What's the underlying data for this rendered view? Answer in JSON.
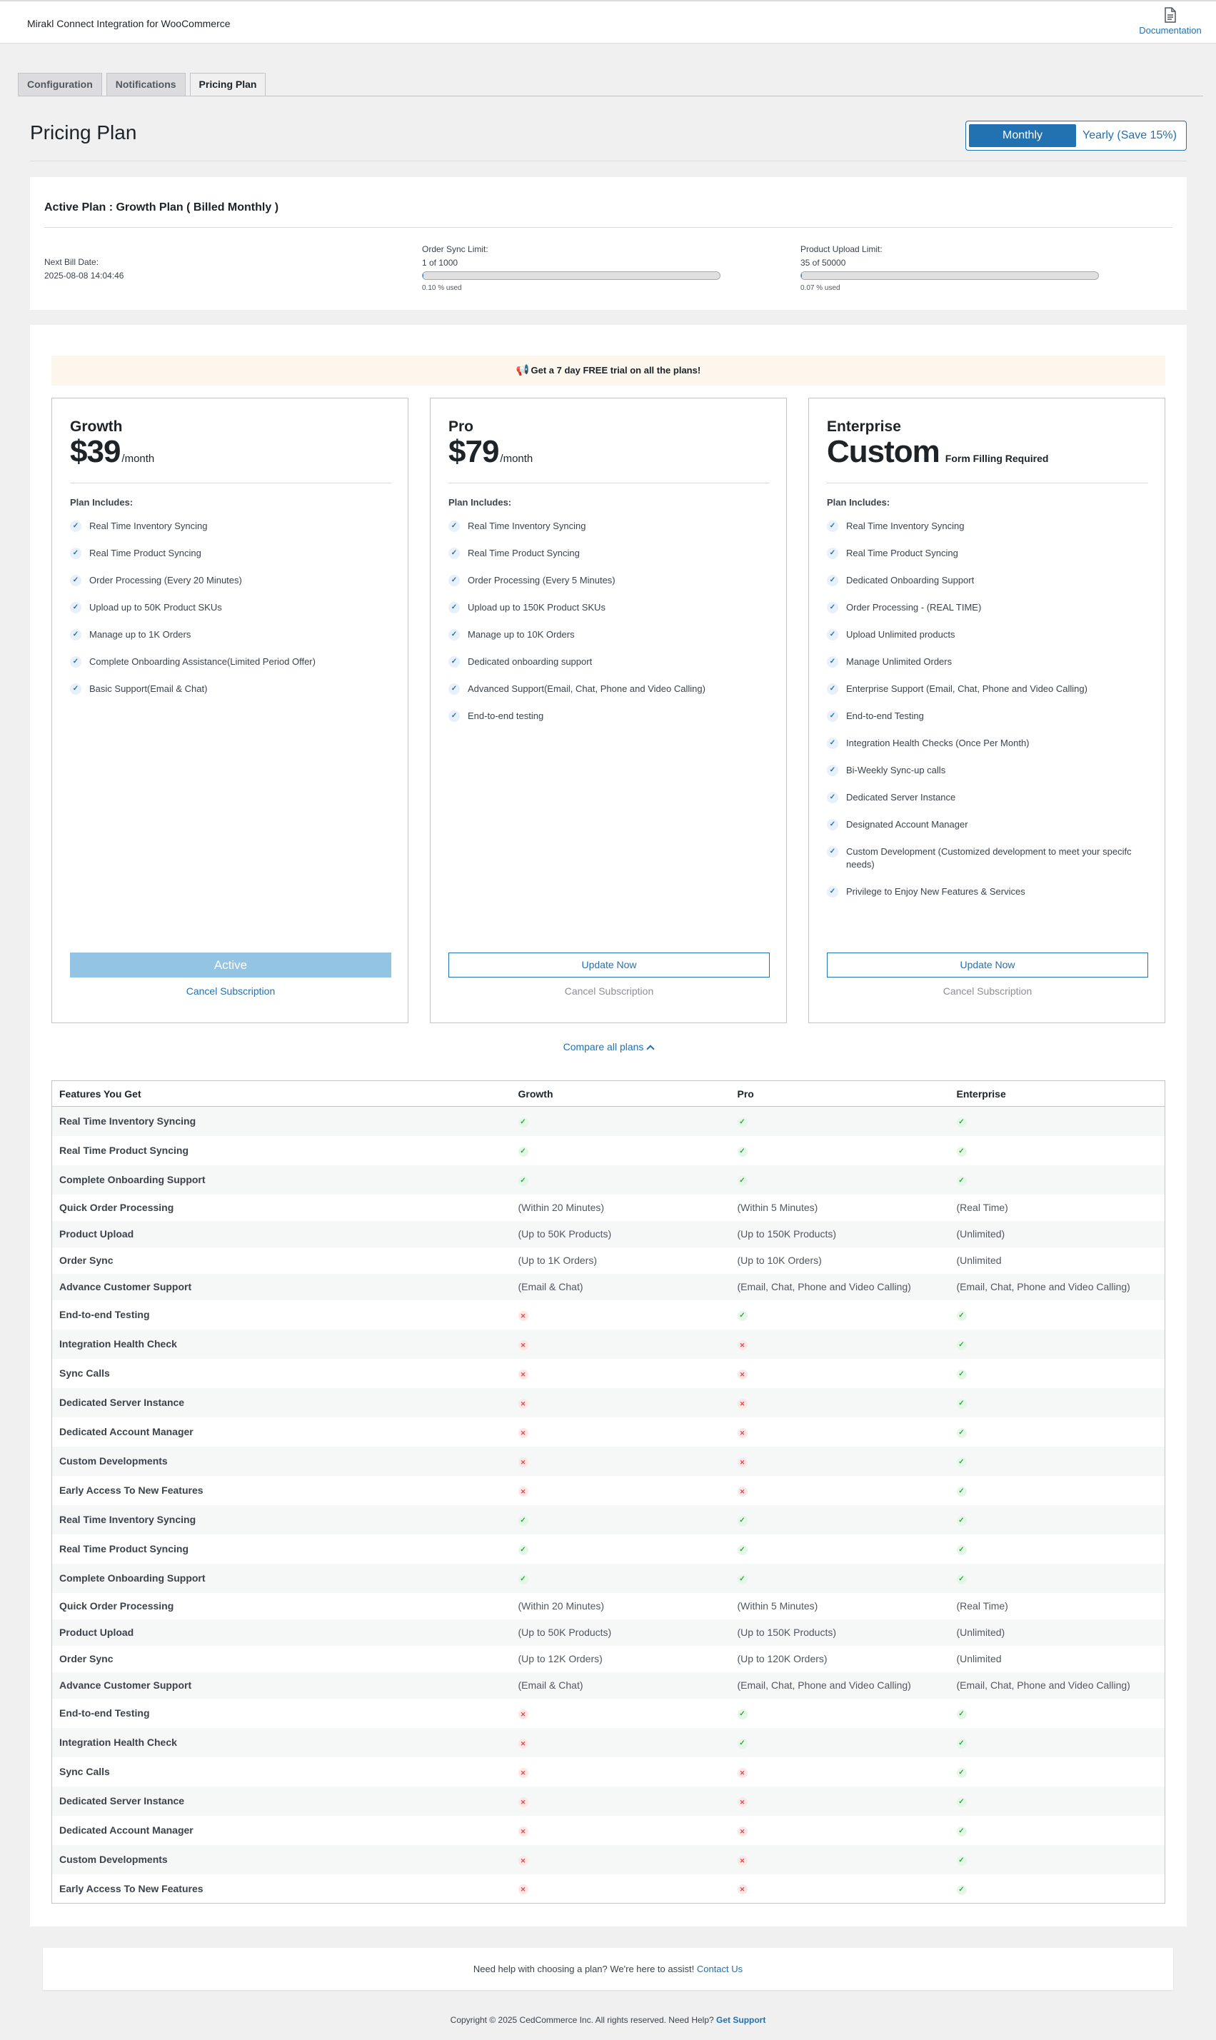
{
  "header": {
    "app_title": "Mirakl Connect Integration for WooCommerce",
    "doc_label": "Documentation"
  },
  "tabs": [
    {
      "label": "Configuration"
    },
    {
      "label": "Notifications"
    },
    {
      "label": "Pricing Plan"
    }
  ],
  "page": {
    "title": "Pricing Plan"
  },
  "billing_toggle": {
    "monthly": "Monthly",
    "yearly": "Yearly (Save 15%)",
    "selected": "Monthly"
  },
  "active_plan": {
    "title": "Active Plan : Growth Plan ( Billed Monthly )",
    "next_bill_label": "Next Bill Date:",
    "next_bill_value": "2025-08-08 14:04:46",
    "order_sync": {
      "label": "Order Sync Limit:",
      "value": "1 of 1000",
      "used_text": "0.10 % used",
      "used_percent": 0.1
    },
    "product_upload": {
      "label": "Product Upload Limit:",
      "value": "35 of 50000",
      "used_text": "0.07 % used",
      "used_percent": 0.07
    }
  },
  "trial_banner": "Get a 7 day FREE trial on all the plans!",
  "plans": [
    {
      "name": "Growth",
      "price": "$39",
      "period": "/month",
      "note": "",
      "includes_label": "Plan Includes:",
      "features": [
        "Real Time Inventory Syncing",
        "Real Time Product Syncing",
        "Order Processing (Every 20 Minutes)",
        "Upload up to 50K Product SKUs",
        "Manage up to 1K Orders",
        "Complete Onboarding Assistance(Limited Period Offer)",
        "Basic Support(Email & Chat)"
      ],
      "button_label": "Active",
      "cancel_label": "Cancel Subscription"
    },
    {
      "name": "Pro",
      "price": "$79",
      "period": "/month",
      "note": "",
      "includes_label": "Plan Includes:",
      "features": [
        "Real Time Inventory Syncing",
        "Real Time Product Syncing",
        "Order Processing (Every 5 Minutes)",
        "Upload up to 150K Product SKUs",
        "Manage up to 10K Orders",
        "Dedicated onboarding support",
        "Advanced Support(Email, Chat, Phone and Video Calling)",
        "End-to-end testing"
      ],
      "button_label": "Update Now",
      "cancel_label": "Cancel Subscription"
    },
    {
      "name": "Enterprise",
      "price": "Custom",
      "period": "",
      "note": "Form Filling Required",
      "includes_label": "Plan Includes:",
      "features": [
        "Real Time Inventory Syncing",
        "Real Time Product Syncing",
        "Dedicated Onboarding Support",
        "Order Processing - (REAL TIME)",
        "Upload Unlimited products",
        "Manage Unlimited Orders",
        "Enterprise Support (Email, Chat, Phone and Video Calling)",
        "End-to-end Testing",
        "Integration Health Checks (Once Per Month)",
        "Bi-Weekly Sync-up calls",
        "Dedicated Server Instance",
        "Designated Account Manager",
        "Custom Development (Customized development to meet your specifc needs)",
        "Privilege to Enjoy New Features & Services"
      ],
      "button_label": "Update Now",
      "cancel_label": "Cancel Subscription"
    }
  ],
  "compare_label": "Compare all plans",
  "comparison": {
    "headers": [
      "Features You Get",
      "Growth",
      "Pro",
      "Enterprise"
    ],
    "rows": [
      [
        "Real Time Inventory Syncing",
        "yes",
        "yes",
        "yes"
      ],
      [
        "Real Time Product Syncing",
        "yes",
        "yes",
        "yes"
      ],
      [
        "Complete Onboarding Support",
        "yes",
        "yes",
        "yes"
      ],
      [
        "Quick Order Processing",
        "(Within 20 Minutes)",
        "(Within 5 Minutes)",
        "(Real Time)"
      ],
      [
        "Product Upload",
        "(Up to 50K Products)",
        "(Up to 150K Products)",
        "(Unlimited)"
      ],
      [
        "Order Sync",
        "(Up to 1K Orders)",
        "(Up to 10K Orders)",
        "(Unlimited"
      ],
      [
        "Advance Customer Support",
        "(Email & Chat)",
        "(Email, Chat, Phone and Video Calling)",
        "(Email, Chat, Phone and Video Calling)"
      ],
      [
        "End-to-end Testing",
        "no",
        "yes",
        "yes"
      ],
      [
        "Integration Health Check",
        "no",
        "no",
        "yes"
      ],
      [
        "Sync Calls",
        "no",
        "no",
        "yes"
      ],
      [
        "Dedicated Server Instance",
        "no",
        "no",
        "yes"
      ],
      [
        "Dedicated Account Manager",
        "no",
        "no",
        "yes"
      ],
      [
        "Custom Developments",
        "no",
        "no",
        "yes"
      ],
      [
        "Early Access To New Features",
        "no",
        "no",
        "yes"
      ],
      [
        "Real Time Inventory Syncing",
        "yes",
        "yes",
        "yes"
      ],
      [
        "Real Time Product Syncing",
        "yes",
        "yes",
        "yes"
      ],
      [
        "Complete Onboarding Support",
        "yes",
        "yes",
        "yes"
      ],
      [
        "Quick Order Processing",
        "(Within 20 Minutes)",
        "(Within 5 Minutes)",
        "(Real Time)"
      ],
      [
        "Product Upload",
        "(Up to 50K Products)",
        "(Up to 150K Products)",
        "(Unlimited)"
      ],
      [
        "Order Sync",
        "(Up to 12K Orders)",
        "(Up to 120K Orders)",
        "(Unlimited"
      ],
      [
        "Advance Customer Support",
        "(Email & Chat)",
        "(Email, Chat, Phone and Video Calling)",
        "(Email, Chat, Phone and Video Calling)"
      ],
      [
        "End-to-end Testing",
        "no",
        "yes",
        "yes"
      ],
      [
        "Integration Health Check",
        "no",
        "yes",
        "yes"
      ],
      [
        "Sync Calls",
        "no",
        "no",
        "yes"
      ],
      [
        "Dedicated Server Instance",
        "no",
        "no",
        "yes"
      ],
      [
        "Dedicated Account Manager",
        "no",
        "no",
        "yes"
      ],
      [
        "Custom Developments",
        "no",
        "no",
        "yes"
      ],
      [
        "Early Access To New Features",
        "no",
        "no",
        "yes"
      ]
    ]
  },
  "help": {
    "text": "Need help with choosing a plan? We're here to assist!",
    "link": "Contact Us"
  },
  "footer": {
    "text": "Copyright © 2025 CedCommerce Inc. All rights reserved. Need Help?",
    "link": "Get Support"
  },
  "icons": {
    "documentation": "document-icon",
    "trial": "megaphone-icon",
    "check": "check-icon",
    "cross": "cross-icon",
    "caret": "chevron-up-icon"
  },
  "colors": {
    "accent": "#2271b1",
    "active_button": "#93c4e4",
    "trial_banner_bg": "#fcf6ec",
    "yes": "#2eaa3c",
    "no": "#e3464c"
  }
}
